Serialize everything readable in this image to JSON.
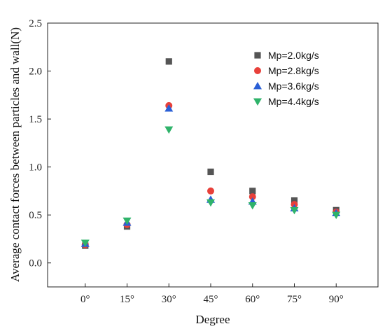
{
  "chart_data": {
    "type": "scatter",
    "xlabel": "Degree",
    "ylabel": "Average contact forces between particles and wall(N)",
    "categories": [
      "0°",
      "15°",
      "30°",
      "45°",
      "60°",
      "75°",
      "90°"
    ],
    "ylim": [
      -0.25,
      2.5
    ],
    "yticks": [
      "0.0",
      "0.5",
      "1.0",
      "1.5",
      "2.0",
      "2.5"
    ],
    "grid": false,
    "legend_position": "top-right",
    "series": [
      {
        "name": "Mp=2.0kg/s",
        "marker": "square",
        "color": "#555555",
        "values": [
          0.18,
          0.38,
          2.1,
          0.95,
          0.75,
          0.65,
          0.55
        ]
      },
      {
        "name": "Mp=2.8kg/s",
        "marker": "circle",
        "color": "#e8403a",
        "values": [
          0.19,
          0.4,
          1.64,
          0.75,
          0.69,
          0.61,
          0.53
        ]
      },
      {
        "name": "Mp=3.6kg/s",
        "marker": "triangle-up",
        "color": "#2a5fd6",
        "values": [
          0.2,
          0.42,
          1.61,
          0.66,
          0.64,
          0.57,
          0.52
        ]
      },
      {
        "name": "Mp=4.4kg/s",
        "marker": "triangle-down",
        "color": "#2fb36a",
        "values": [
          0.21,
          0.44,
          1.39,
          0.63,
          0.6,
          0.55,
          0.5
        ]
      }
    ]
  }
}
